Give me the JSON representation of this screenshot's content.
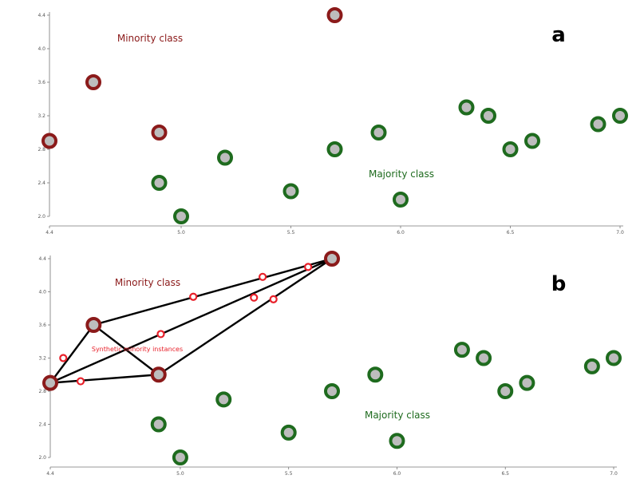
{
  "chart_data": [
    {
      "type": "scatter",
      "panel_label": "a",
      "xlim": [
        4.4,
        7.0
      ],
      "ylim": [
        2.0,
        4.4
      ],
      "x_ticks": [
        "4.4",
        "5.0",
        "5.5",
        "6.0",
        "6.5",
        "7.0"
      ],
      "y_ticks": [
        "2.0",
        "2.4",
        "2.8",
        "3.2",
        "3.6",
        "4.0",
        "4.4"
      ],
      "annotations": {
        "minority": "Minority class",
        "majority": "Majority class"
      },
      "series": [
        {
          "class": "minority",
          "color": "#8b1a1a",
          "points": [
            [
              4.4,
              2.9
            ],
            [
              4.6,
              3.6
            ],
            [
              4.9,
              3.0
            ],
            [
              5.7,
              4.4
            ]
          ]
        },
        {
          "class": "majority",
          "color": "#1e6b1e",
          "points": [
            [
              4.9,
              2.4
            ],
            [
              5.0,
              2.0
            ],
            [
              5.2,
              2.7
            ],
            [
              5.5,
              2.3
            ],
            [
              5.7,
              2.8
            ],
            [
              5.9,
              3.0
            ],
            [
              6.0,
              2.2
            ],
            [
              6.3,
              3.3
            ],
            [
              6.4,
              3.2
            ],
            [
              6.5,
              2.8
            ],
            [
              6.6,
              2.9
            ],
            [
              6.9,
              3.1
            ],
            [
              7.0,
              3.2
            ]
          ]
        }
      ]
    },
    {
      "type": "scatter",
      "panel_label": "b",
      "xlim": [
        4.4,
        7.0
      ],
      "ylim": [
        2.0,
        4.4
      ],
      "x_ticks": [
        "4.4",
        "5.0",
        "5.5",
        "6.0",
        "6.5",
        "7.0"
      ],
      "y_ticks": [
        "2.0",
        "2.4",
        "2.8",
        "3.2",
        "3.6",
        "4.0",
        "4.4"
      ],
      "annotations": {
        "minority": "Minority class",
        "majority": "Majority class",
        "synthetic": "Synthetic minority instances"
      },
      "series": [
        {
          "class": "minority",
          "color": "#8b1a1a",
          "points": [
            [
              4.4,
              2.9
            ],
            [
              4.6,
              3.6
            ],
            [
              4.9,
              3.0
            ],
            [
              5.7,
              4.4
            ]
          ]
        },
        {
          "class": "majority",
          "color": "#1e6b1e",
          "points": [
            [
              4.9,
              2.4
            ],
            [
              5.0,
              2.0
            ],
            [
              5.2,
              2.7
            ],
            [
              5.5,
              2.3
            ],
            [
              5.7,
              2.8
            ],
            [
              5.9,
              3.0
            ],
            [
              6.0,
              2.2
            ],
            [
              6.3,
              3.3
            ],
            [
              6.4,
              3.2
            ],
            [
              6.5,
              2.8
            ],
            [
              6.6,
              2.9
            ],
            [
              6.9,
              3.1
            ],
            [
              7.0,
              3.2
            ]
          ]
        },
        {
          "class": "synthetic",
          "color": "#e8202a",
          "points": [
            [
              4.46,
              3.2
            ],
            [
              4.54,
              2.92
            ],
            [
              4.91,
              3.49
            ],
            [
              5.06,
              3.94
            ],
            [
              5.34,
              3.93
            ],
            [
              5.38,
              4.18
            ],
            [
              5.43,
              3.91
            ],
            [
              5.59,
              4.3
            ]
          ]
        }
      ],
      "links": [
        [
          [
            4.4,
            2.9
          ],
          [
            4.6,
            3.6
          ]
        ],
        [
          [
            4.4,
            2.9
          ],
          [
            4.9,
            3.0
          ]
        ],
        [
          [
            4.4,
            2.9
          ],
          [
            5.7,
            4.4
          ]
        ],
        [
          [
            4.6,
            3.6
          ],
          [
            4.9,
            3.0
          ]
        ],
        [
          [
            4.6,
            3.6
          ],
          [
            5.7,
            4.4
          ]
        ],
        [
          [
            4.9,
            3.0
          ],
          [
            5.7,
            4.4
          ]
        ]
      ]
    }
  ]
}
